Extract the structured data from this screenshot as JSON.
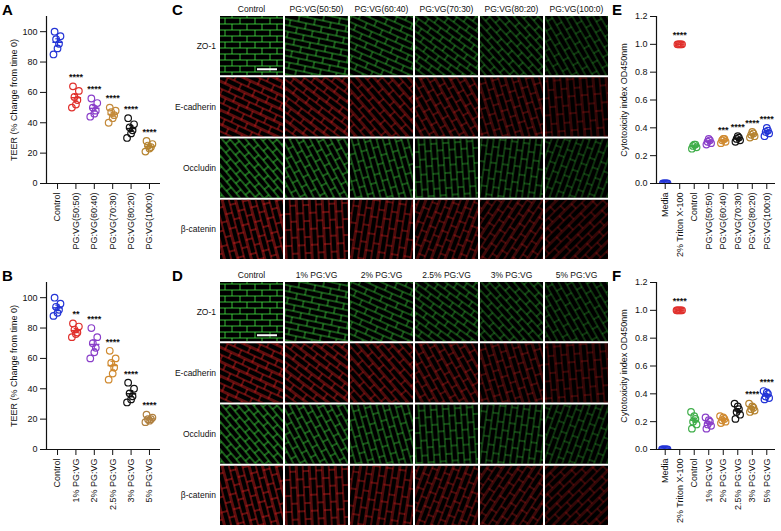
{
  "chart_data": [
    {
      "panel": "A",
      "type": "scatter",
      "y_label": "TEER (% Change from time 0)",
      "categories": [
        "Control",
        "PG:VG(50:50)",
        "PG:VG(60:40)",
        "PG:VG(70:30)",
        "PG:VG(80:20)",
        "PG:VG(100:0)"
      ],
      "colors": [
        "#2334d6",
        "#e0302c",
        "#8a3fc9",
        "#c48a3a",
        "#111111",
        "#b5832f"
      ],
      "values": [
        [
          100,
          97,
          95,
          92,
          89,
          85
        ],
        [
          64,
          61,
          57,
          55,
          52,
          50
        ],
        [
          56,
          53,
          50,
          48,
          46,
          44
        ],
        [
          50,
          48,
          47,
          45,
          43,
          40
        ],
        [
          43,
          39,
          37,
          35,
          33,
          30
        ],
        [
          28,
          26,
          25,
          24,
          23,
          21
        ]
      ],
      "means": [
        93,
        56.5,
        49.5,
        45.5,
        36.2,
        24.5
      ],
      "errors": [
        2.3,
        2.2,
        1.8,
        1.5,
        1.9,
        1.0
      ],
      "significance": [
        null,
        "****",
        "****",
        "****",
        "****",
        "****"
      ],
      "ylim": [
        0,
        110
      ],
      "yticks": [
        0,
        20,
        40,
        60,
        80,
        100
      ],
      "marker": "circle"
    },
    {
      "panel": "B",
      "type": "scatter",
      "y_label": "TEER (% Change from time 0)",
      "categories": [
        "Control",
        "1% PG:VG",
        "2% PG:VG",
        "2.5% PG:VG",
        "3% PG:VG",
        "5% PG:VG"
      ],
      "colors": [
        "#2334d6",
        "#e0302c",
        "#8a3fc9",
        "#d08a30",
        "#111111",
        "#b08040"
      ],
      "values": [
        [
          100,
          96,
          94,
          92,
          90,
          88
        ],
        [
          83,
          81,
          79,
          77,
          76,
          74
        ],
        [
          80,
          74,
          70,
          67,
          64,
          60
        ],
        [
          65,
          60,
          57,
          54,
          50,
          46
        ],
        [
          44,
          40,
          37,
          35,
          33,
          31
        ],
        [
          23,
          21,
          20,
          20,
          19,
          18
        ]
      ],
      "means": [
        93.3,
        78.3,
        69.2,
        55.3,
        36.7,
        20.2
      ],
      "errors": [
        1.8,
        1.3,
        2.9,
        2.8,
        2.0,
        0.7
      ],
      "significance": [
        null,
        "**",
        "****",
        "****",
        "****",
        "****"
      ],
      "ylim": [
        0,
        110
      ],
      "yticks": [
        0,
        20,
        40,
        60,
        80,
        100
      ],
      "marker": "circle"
    },
    {
      "panel": "C",
      "type": "micrograph_grid",
      "columns": [
        "Control",
        "PG:VG(50:50)",
        "PG:VG(60:40)",
        "PG:VG(70:30)",
        "PG:VG(80:20)",
        "PG:VG(100:0)"
      ],
      "rows": [
        "ZO-1",
        "E-cadherin",
        "Occludin",
        "β-catenin"
      ],
      "colors": [
        "#3fdc3f",
        "#e02020",
        "#3fdc3f",
        "#e02020"
      ]
    },
    {
      "panel": "D",
      "type": "micrograph_grid",
      "columns": [
        "Control",
        "1% PG:VG",
        "2% PG:VG",
        "2.5% PG:VG",
        "3% PG:VG",
        "5% PG:VG"
      ],
      "rows": [
        "ZO-1",
        "E-cadherin",
        "Occludin",
        "β-catenin"
      ],
      "colors": [
        "#3fdc3f",
        "#e02020",
        "#3fdc3f",
        "#e02020"
      ]
    },
    {
      "panel": "E",
      "type": "scatter",
      "y_label": "Cytotoxicity index OD450nm",
      "categories": [
        "Media",
        "2% Triton X-100",
        "Control",
        "PG:VG(50:50)",
        "PG:VG(60:40)",
        "PG:VG(70:30)",
        "PG:VG(80:20)",
        "PG:VG(100:0)"
      ],
      "colors": [
        "#2334d6",
        "#e0302c",
        "#3fae49",
        "#8a3fc9",
        "#d08a30",
        "#111111",
        "#b5832f",
        "#2334d6"
      ],
      "values": [
        [
          0,
          0,
          0,
          0,
          0
        ],
        [
          1,
          1,
          1,
          1,
          1
        ],
        [
          0.25,
          0.26,
          0.27,
          0.28,
          0.28
        ],
        [
          0.28,
          0.29,
          0.3,
          0.31,
          0.32
        ],
        [
          0.29,
          0.3,
          0.31,
          0.32,
          0.32
        ],
        [
          0.3,
          0.31,
          0.32,
          0.33,
          0.34
        ],
        [
          0.33,
          0.34,
          0.35,
          0.36,
          0.37
        ],
        [
          0.34,
          0.36,
          0.37,
          0.38,
          0.4
        ]
      ],
      "means": [
        0,
        1,
        0.268,
        0.3,
        0.308,
        0.32,
        0.35,
        0.37
      ],
      "errors": [
        0,
        0,
        0.006,
        0.007,
        0.006,
        0.007,
        0.007,
        0.01
      ],
      "significance": [
        null,
        "****",
        null,
        null,
        "***",
        "****",
        "****",
        "****"
      ],
      "ylim": [
        0,
        1.2
      ],
      "yticks": [
        {
          "value": 0,
          "label": "0.0"
        },
        0.2,
        0.4,
        0.6,
        0.8,
        {
          "value": 1,
          "label": "1.0"
        },
        1.2
      ],
      "marker": "circle"
    },
    {
      "panel": "F",
      "type": "scatter",
      "y_label": "Cytotoxicity index OD450nm",
      "categories": [
        "Media",
        "2% Triton X-100",
        "Control",
        "1% PG:VG",
        "2% PG:VG",
        "2.5% PG:VG",
        "3% PG:VG",
        "5% PG:VG"
      ],
      "colors": [
        "#2334d6",
        "#e0302c",
        "#3fae49",
        "#8a3fc9",
        "#d08a30",
        "#111111",
        "#b5832f",
        "#2334d6"
      ],
      "values": [
        [
          0,
          0,
          0,
          0,
          0,
          0
        ],
        [
          1,
          1,
          1,
          1,
          1,
          1
        ],
        [
          0.15,
          0.18,
          0.2,
          0.22,
          0.24,
          0.27
        ],
        [
          0.15,
          0.17,
          0.18,
          0.2,
          0.21,
          0.23
        ],
        [
          0.19,
          0.2,
          0.21,
          0.22,
          0.23,
          0.24
        ],
        [
          0.22,
          0.25,
          0.27,
          0.29,
          0.31,
          0.33
        ],
        [
          0.27,
          0.28,
          0.29,
          0.3,
          0.31,
          0.33
        ],
        [
          0.36,
          0.37,
          0.38,
          0.4,
          0.41,
          0.42
        ]
      ],
      "means": [
        0,
        1,
        0.21,
        0.19,
        0.215,
        0.278,
        0.3,
        0.39
      ],
      "errors": [
        0,
        0,
        0.017,
        0.012,
        0.008,
        0.016,
        0.009,
        0.01
      ],
      "significance": [
        null,
        "****",
        null,
        null,
        null,
        null,
        "****",
        "****"
      ],
      "ylim": [
        0,
        1.2
      ],
      "yticks": [
        {
          "value": 0,
          "label": "0.0"
        },
        0.2,
        0.4,
        0.6,
        0.8,
        {
          "value": 1,
          "label": "1.0"
        },
        1.2
      ],
      "marker": "circle"
    }
  ]
}
